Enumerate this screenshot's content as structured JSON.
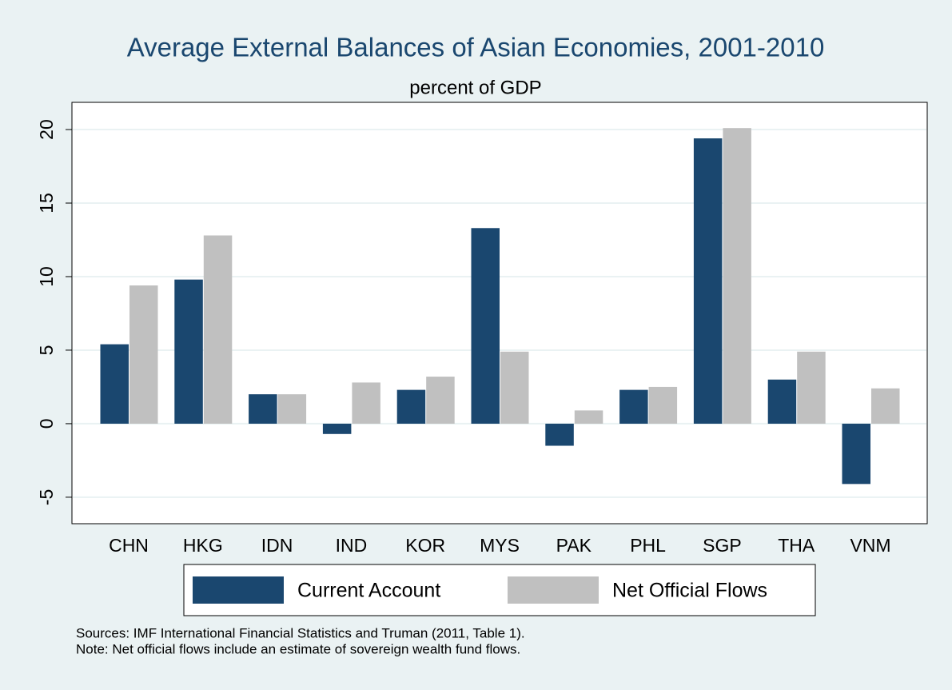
{
  "chart_data": {
    "type": "bar",
    "title": "Average External Balances of Asian Economies, 2001-2010",
    "subtitle": "percent of GDP",
    "categories": [
      "CHN",
      "HKG",
      "IDN",
      "IND",
      "KOR",
      "MYS",
      "PAK",
      "PHL",
      "SGP",
      "THA",
      "VNM"
    ],
    "series": [
      {
        "name": "Current Account",
        "color": "#1a476f",
        "values": [
          5.4,
          9.8,
          2.0,
          -0.7,
          2.3,
          13.3,
          -1.5,
          2.3,
          19.4,
          3.0,
          -4.1
        ]
      },
      {
        "name": "Net Official Flows",
        "color": "#c0c0c0",
        "values": [
          9.4,
          12.8,
          2.0,
          2.8,
          3.2,
          4.9,
          0.9,
          2.5,
          20.1,
          4.9,
          2.4
        ]
      }
    ],
    "ylim": [
      -6.8,
      21.85
    ],
    "yticks": [
      -5,
      0,
      5,
      10,
      15,
      20
    ],
    "grid": true,
    "legend": "bottom",
    "notes": [
      "Sources: IMF International Financial Statistics and Truman (2011, Table 1).",
      "Note: Net official flows include an estimate of sovereign wealth fund flows."
    ]
  }
}
